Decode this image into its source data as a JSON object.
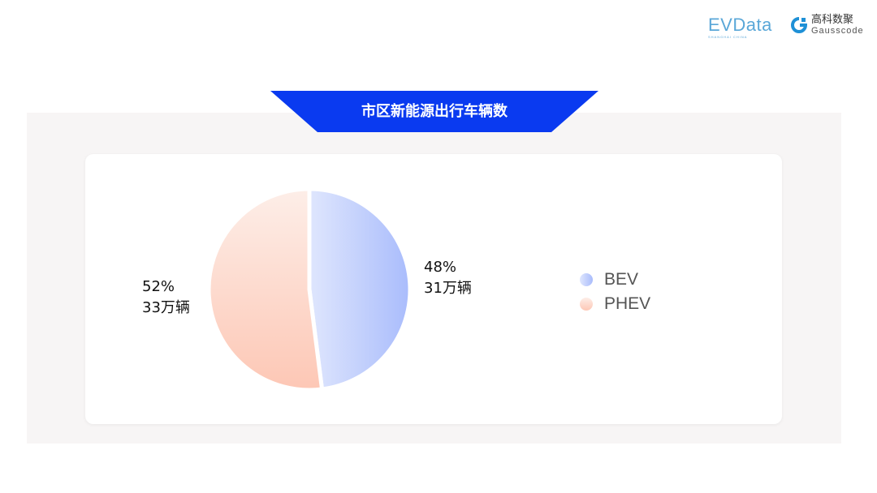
{
  "logos": {
    "evdata": "EVData",
    "evdata_sub": "SHANGHAI CHINA",
    "gauss_cn": "高科数聚",
    "gauss_en": "Gausscode"
  },
  "title": "市区新能源出行车辆数",
  "colors": {
    "banner": "#0a3af0",
    "bev_start": "#dfe6fd",
    "bev_end": "#a9bcfc",
    "phev_start": "#fdeee8",
    "phev_end": "#fdc7b5"
  },
  "chart_data": {
    "type": "pie",
    "title": "市区新能源出行车辆数",
    "slices": [
      {
        "name": "BEV",
        "percent": 48,
        "pct_label": "48%",
        "value_label": "31万辆"
      },
      {
        "name": "PHEV",
        "percent": 52,
        "pct_label": "52%",
        "value_label": "33万辆"
      }
    ],
    "legend": "right"
  }
}
